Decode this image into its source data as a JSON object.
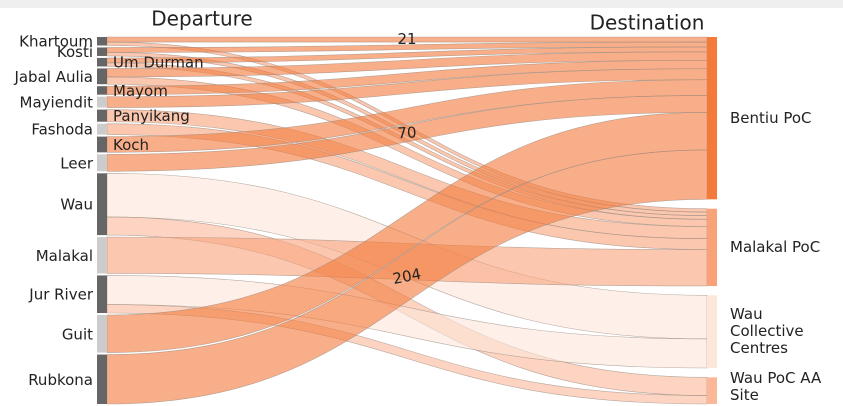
{
  "chart_data": {
    "type": "sankey",
    "source_heading": "Departure",
    "target_heading": "Destination",
    "sources": [
      {
        "name": "Khartoum",
        "color": "#666666"
      },
      {
        "name": "Kosti",
        "color": "#666666"
      },
      {
        "name": "Um Durman",
        "color": "#666666",
        "label_side": "right"
      },
      {
        "name": "Jabal Aulia",
        "color": "#666666"
      },
      {
        "name": "Mayom",
        "color": "#666666",
        "label_side": "right"
      },
      {
        "name": "Mayiendit",
        "color": "#cccccc"
      },
      {
        "name": "Panyikang",
        "color": "#666666",
        "label_side": "right"
      },
      {
        "name": "Fashoda",
        "color": "#cccccc"
      },
      {
        "name": "Koch",
        "color": "#666666",
        "label_side": "right"
      },
      {
        "name": "Leer",
        "color": "#cccccc"
      },
      {
        "name": "Wau",
        "color": "#666666"
      },
      {
        "name": "Malakal",
        "color": "#cccccc"
      },
      {
        "name": "Jur River",
        "color": "#666666"
      },
      {
        "name": "Guit",
        "color": "#cccccc"
      },
      {
        "name": "Rubkona",
        "color": "#666666"
      }
    ],
    "targets": [
      {
        "name": "Bentiu PoC",
        "color": "#f47a3a"
      },
      {
        "name": "Malakal PoC",
        "color": "#f9a27a"
      },
      {
        "name": "Wau Collective Centres",
        "color": "#fde6da"
      },
      {
        "name": "Wau PoC AA Site",
        "color": "#fbb898"
      }
    ],
    "flows": [
      {
        "source": 0,
        "target": 0,
        "value": 21,
        "label": true
      },
      {
        "source": 0,
        "target": 1,
        "value": 14
      },
      {
        "source": 1,
        "target": 0,
        "value": 20
      },
      {
        "source": 1,
        "target": 1,
        "value": 15
      },
      {
        "source": 2,
        "target": 0,
        "value": 20
      },
      {
        "source": 2,
        "target": 1,
        "value": 15
      },
      {
        "source": 3,
        "target": 0,
        "value": 35
      },
      {
        "source": 3,
        "target": 1,
        "value": 30
      },
      {
        "source": 4,
        "target": 0,
        "value": 35
      },
      {
        "source": 5,
        "target": 0,
        "value": 45
      },
      {
        "source": 6,
        "target": 1,
        "value": 50
      },
      {
        "source": 7,
        "target": 1,
        "value": 45
      },
      {
        "source": 8,
        "target": 0,
        "value": 65
      },
      {
        "source": 9,
        "target": 0,
        "value": 70,
        "label": true
      },
      {
        "source": 10,
        "target": 2,
        "value": 180
      },
      {
        "source": 10,
        "target": 3,
        "value": 75
      },
      {
        "source": 11,
        "target": 1,
        "value": 150
      },
      {
        "source": 12,
        "target": 2,
        "value": 120
      },
      {
        "source": 12,
        "target": 3,
        "value": 35
      },
      {
        "source": 13,
        "target": 0,
        "value": 155
      },
      {
        "source": 14,
        "target": 0,
        "value": 204,
        "label": true
      }
    ]
  }
}
